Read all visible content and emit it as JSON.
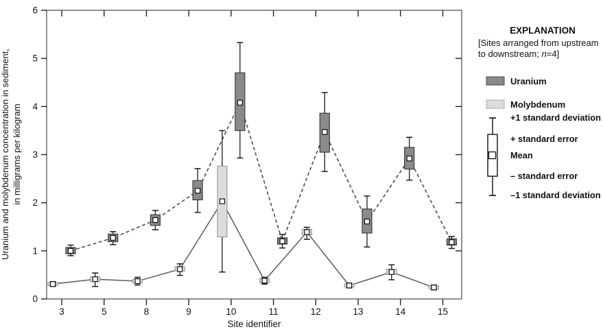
{
  "chart_data": {
    "type": "box-line",
    "title": "",
    "xlabel": "Site identifier",
    "ylabel_lines": [
      "Uranium and molybdenum concentration in sediment,",
      "in milligrams per kilogram"
    ],
    "x_categories": [
      "3",
      "5",
      "8",
      "9",
      "10",
      "11",
      "12",
      "13",
      "14",
      "15"
    ],
    "ylim": [
      0,
      6
    ],
    "yticks": [
      "0",
      "1",
      "2",
      "3",
      "4",
      "5",
      "6"
    ],
    "grid": false,
    "box_semantics": {
      "whisker_top": "+1 standard deviation",
      "box_top": "+ standard error",
      "marker": "Mean",
      "box_bottom": "- standard error",
      "whisker_bottom": "-1 standard deviation"
    },
    "series": [
      {
        "name": "Uranium",
        "line_style": "dashed",
        "line_color": "#4d4d4d",
        "box_fill": "#8a8a8a",
        "box_stroke": "#3b3b3b",
        "x_offset_units": 0.21,
        "points": [
          {
            "site": "3",
            "mean": 1.0,
            "se_low": 0.94,
            "se_high": 1.07,
            "sd_low": 0.9,
            "sd_high": 1.12
          },
          {
            "site": "5",
            "mean": 1.27,
            "se_low": 1.19,
            "se_high": 1.35,
            "sd_low": 1.13,
            "sd_high": 1.4
          },
          {
            "site": "8",
            "mean": 1.64,
            "se_low": 1.53,
            "se_high": 1.75,
            "sd_low": 1.44,
            "sd_high": 1.84
          },
          {
            "site": "9",
            "mean": 2.25,
            "se_low": 2.06,
            "se_high": 2.46,
            "sd_low": 1.8,
            "sd_high": 2.71
          },
          {
            "site": "10",
            "mean": 4.08,
            "se_low": 3.5,
            "se_high": 4.7,
            "sd_low": 2.93,
            "sd_high": 5.33
          },
          {
            "site": "11",
            "mean": 1.2,
            "se_low": 1.14,
            "se_high": 1.27,
            "sd_low": 1.06,
            "sd_high": 1.34
          },
          {
            "site": "12",
            "mean": 3.47,
            "se_low": 3.05,
            "se_high": 3.86,
            "sd_low": 2.65,
            "sd_high": 4.29
          },
          {
            "site": "13",
            "mean": 1.61,
            "se_low": 1.37,
            "se_high": 1.87,
            "sd_low": 1.08,
            "sd_high": 2.14
          },
          {
            "site": "14",
            "mean": 2.92,
            "se_low": 2.7,
            "se_high": 3.15,
            "sd_low": 2.47,
            "sd_high": 3.36
          },
          {
            "site": "15",
            "mean": 1.18,
            "se_low": 1.12,
            "se_high": 1.25,
            "sd_low": 1.05,
            "sd_high": 1.3
          }
        ]
      },
      {
        "name": "Molybdenum",
        "line_style": "solid",
        "line_color": "#636363",
        "box_fill": "#dcdcdc",
        "box_stroke": "#9e9e9e",
        "x_offset_units": -0.21,
        "points": [
          {
            "site": "3",
            "mean": 0.31,
            "se_low": 0.28,
            "se_high": 0.34,
            "sd_low": 0.26,
            "sd_high": 0.36
          },
          {
            "site": "5",
            "mean": 0.41,
            "se_low": 0.36,
            "se_high": 0.46,
            "sd_low": 0.26,
            "sd_high": 0.54
          },
          {
            "site": "8",
            "mean": 0.37,
            "se_low": 0.33,
            "se_high": 0.41,
            "sd_low": 0.29,
            "sd_high": 0.45
          },
          {
            "site": "9",
            "mean": 0.62,
            "se_low": 0.58,
            "se_high": 0.67,
            "sd_low": 0.49,
            "sd_high": 0.73
          },
          {
            "site": "10",
            "mean": 2.03,
            "se_low": 1.29,
            "se_high": 2.76,
            "sd_low": 0.56,
            "sd_high": 3.5
          },
          {
            "site": "11",
            "mean": 0.38,
            "se_low": 0.34,
            "se_high": 0.42,
            "sd_low": 0.31,
            "sd_high": 0.45
          },
          {
            "site": "12",
            "mean": 1.39,
            "se_low": 1.33,
            "se_high": 1.45,
            "sd_low": 1.24,
            "sd_high": 1.49
          },
          {
            "site": "13",
            "mean": 0.28,
            "se_low": 0.25,
            "se_high": 0.31,
            "sd_low": 0.23,
            "sd_high": 0.33
          },
          {
            "site": "14",
            "mean": 0.56,
            "se_low": 0.51,
            "se_high": 0.62,
            "sd_low": 0.4,
            "sd_high": 0.71
          },
          {
            "site": "15",
            "mean": 0.24,
            "se_low": 0.21,
            "se_high": 0.27,
            "sd_low": 0.19,
            "sd_high": 0.29
          }
        ]
      }
    ],
    "legend": {
      "position": "right",
      "title": "EXPLANATION",
      "note_line1": "[Sites arranged from upstream",
      "note_line2_parts": [
        "to downstream; ",
        "n",
        "=4]"
      ],
      "items": [
        {
          "label": "Uranium",
          "color": "#8a8a8a"
        },
        {
          "label": "Molybdenum",
          "color": "#dcdcdc"
        }
      ],
      "key_labels": {
        "sd_high": "+1 standard deviation",
        "se_high": "+ standard error",
        "mean": "Mean",
        "se_low": "– standard error",
        "sd_low": "–1 standard deviation"
      }
    }
  }
}
